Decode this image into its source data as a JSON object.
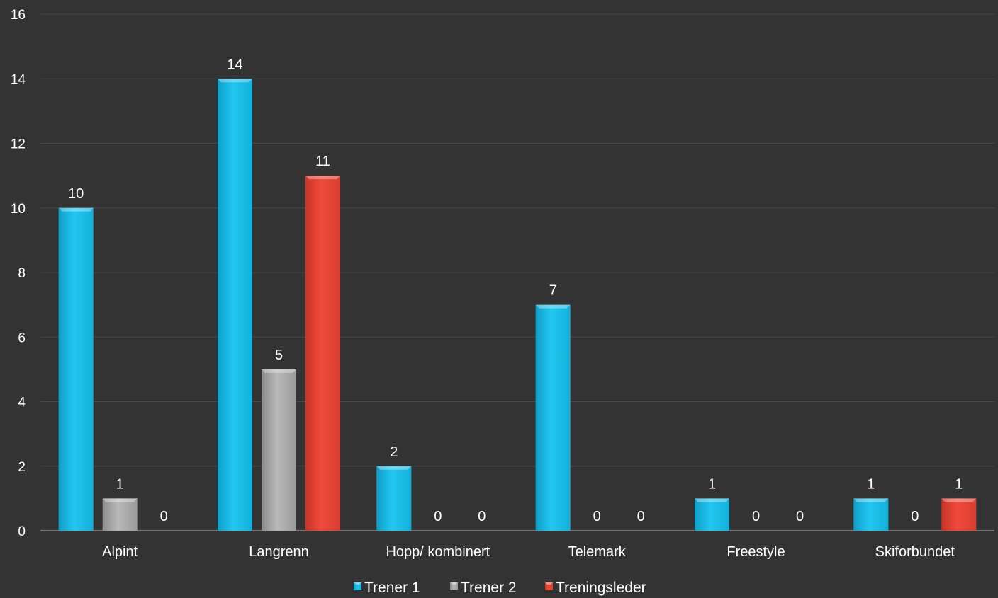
{
  "chart_data": {
    "type": "bar",
    "title": "",
    "xlabel": "",
    "ylabel": "",
    "categories": [
      "Alpint",
      "Langrenn",
      "Hopp/ kombinert",
      "Telemark",
      "Freestyle",
      "Skiforbundet"
    ],
    "series": [
      {
        "name": "Trener 1",
        "color": "#1ec3ee",
        "values": [
          10,
          14,
          2,
          7,
          1,
          1
        ]
      },
      {
        "name": "Trener 2",
        "color": "#a9a9a9",
        "values": [
          1,
          5,
          0,
          0,
          0,
          0
        ]
      },
      {
        "name": "Treningsleder",
        "color": "#e8483a",
        "values": [
          0,
          11,
          0,
          0,
          0,
          1
        ]
      }
    ],
    "ylim": [
      0,
      16
    ],
    "yticks": [
      0,
      2,
      4,
      6,
      8,
      10,
      12,
      14,
      16
    ],
    "grid": true,
    "data_labels": true,
    "legend_position": "bottom"
  },
  "colors": {
    "background": "#333333",
    "text": "#ffffff",
    "gridline": "#4a4a4a"
  }
}
